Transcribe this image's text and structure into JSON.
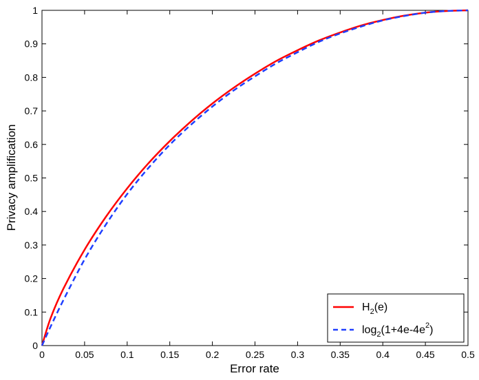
{
  "chart_data": {
    "type": "line",
    "title": "",
    "xlabel": "Error rate",
    "ylabel": "Privacy amplification",
    "xlim": [
      0,
      0.5
    ],
    "ylim": [
      0,
      1
    ],
    "xticks": [
      "0",
      "0.05",
      "0.1",
      "0.15",
      "0.2",
      "0.25",
      "0.3",
      "0.35",
      "0.4",
      "0.45",
      "0.5"
    ],
    "yticks": [
      "0",
      "0.1",
      "0.2",
      "0.3",
      "0.4",
      "0.5",
      "0.6",
      "0.7",
      "0.8",
      "0.9",
      "1"
    ],
    "grid": false,
    "legend_position": "bottom-right",
    "x": [
      0,
      0.01,
      0.025,
      0.05,
      0.075,
      0.1,
      0.125,
      0.15,
      0.175,
      0.2,
      0.225,
      0.25,
      0.275,
      0.3,
      0.325,
      0.35,
      0.375,
      0.4,
      0.425,
      0.45,
      0.475,
      0.5
    ],
    "series": [
      {
        "name": "H2(e)",
        "legend": {
          "base": "H",
          "sub": "2",
          "rest": "(e)"
        },
        "color": "#ff0000",
        "dash": "solid",
        "values": [
          0,
          0.081,
          0.169,
          0.286,
          0.384,
          0.469,
          0.544,
          0.61,
          0.669,
          0.722,
          0.769,
          0.811,
          0.849,
          0.881,
          0.91,
          0.934,
          0.955,
          0.971,
          0.984,
          0.993,
          0.998,
          1.0
        ]
      },
      {
        "name": "log2(1+4e-4e2)",
        "legend": {
          "base": "log",
          "sub": "2",
          "mid": "(1+4e-4e",
          "sup": "2",
          "rest": ")"
        },
        "color": "#1f3fff",
        "dash": "dashed",
        "values": [
          0,
          0.056,
          0.135,
          0.257,
          0.361,
          0.452,
          0.53,
          0.599,
          0.659,
          0.713,
          0.761,
          0.803,
          0.842,
          0.875,
          0.906,
          0.931,
          0.952,
          0.97,
          0.983,
          0.993,
          0.998,
          1.0
        ]
      }
    ]
  }
}
